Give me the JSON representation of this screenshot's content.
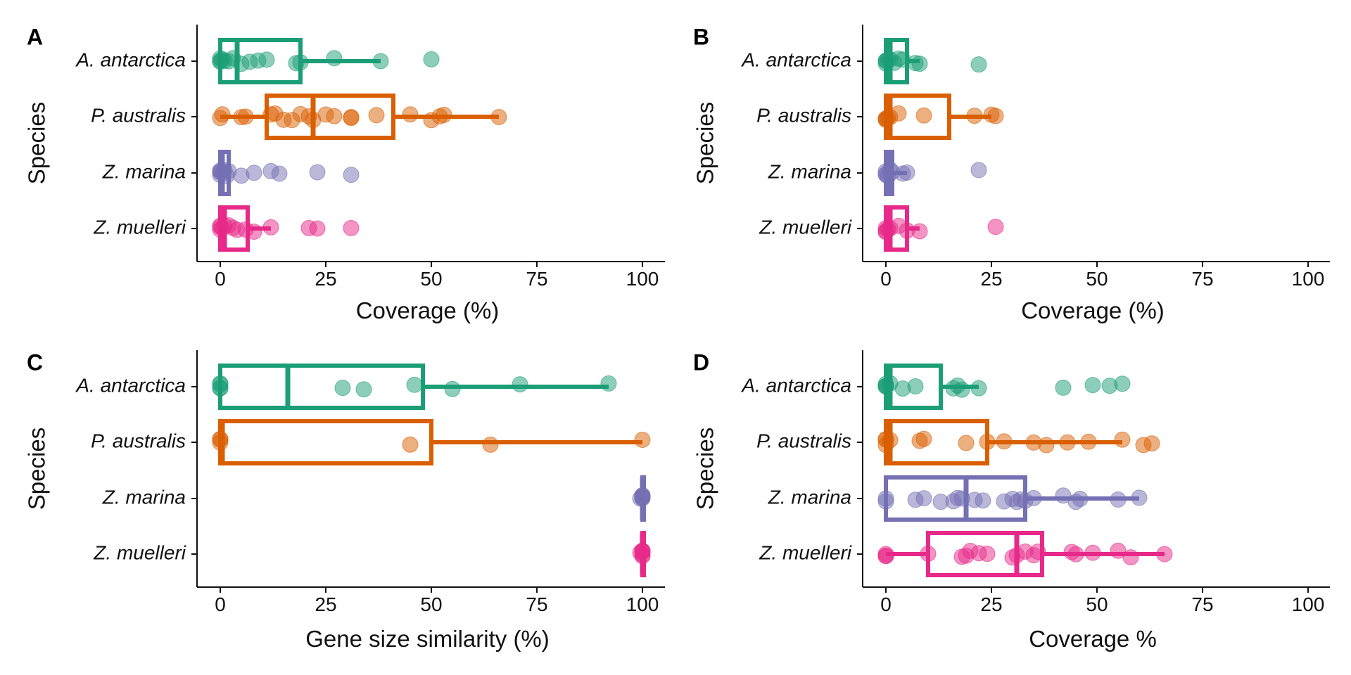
{
  "colors": {
    "A. antarctica": "#1b9e77",
    "P. australis": "#d95f02",
    "Z. marina": "#7570b3",
    "Z. muelleri": "#e7298a"
  },
  "chart_data": [
    {
      "panel": "A",
      "type": "boxplot",
      "xlabel": "Coverage (%)",
      "ylabel": "Species",
      "xlim": [
        0,
        100
      ],
      "xticks": [
        "0",
        "25",
        "50",
        "75",
        "100"
      ],
      "categories": [
        "A. antarctica",
        "P. australis",
        "Z. marina",
        "Z. muelleri"
      ],
      "series": [
        {
          "name": "A. antarctica",
          "box": {
            "q1": 0,
            "median": 4,
            "q3": 19,
            "whisker_low": 0,
            "whisker_high": 38
          },
          "points": [
            0,
            0,
            0,
            0.5,
            1,
            2,
            3,
            5,
            7,
            9,
            11,
            18,
            19,
            27,
            38,
            50
          ]
        },
        {
          "name": "P. australis",
          "box": {
            "q1": 11,
            "median": 22,
            "q3": 41,
            "whisker_low": 0,
            "whisker_high": 66
          },
          "points": [
            0,
            0.5,
            5,
            6,
            12,
            13,
            15,
            17,
            19,
            21,
            22,
            25,
            27,
            31,
            31,
            37,
            45,
            50,
            52,
            53,
            66
          ]
        },
        {
          "name": "Z. marina",
          "box": {
            "q1": 0,
            "median": 0.5,
            "q3": 2,
            "whisker_low": 0,
            "whisker_high": 2
          },
          "points": [
            0,
            0,
            0,
            0,
            0.5,
            1,
            1.5,
            2,
            5,
            8,
            12,
            14,
            23,
            31
          ]
        },
        {
          "name": "Z. muelleri",
          "box": {
            "q1": 0,
            "median": 1,
            "q3": 6.5,
            "whisker_low": 0,
            "whisker_high": 12
          },
          "points": [
            0,
            0,
            0,
            0.5,
            1,
            2,
            3,
            4,
            6,
            8,
            12,
            21,
            23,
            31
          ]
        }
      ]
    },
    {
      "panel": "B",
      "type": "boxplot",
      "xlabel": "Coverage (%)",
      "ylabel": "Species",
      "xlim": [
        0,
        100
      ],
      "xticks": [
        "0",
        "25",
        "50",
        "75",
        "100"
      ],
      "categories": [
        "A. antarctica",
        "P. australis",
        "Z. marina",
        "Z. muelleri"
      ],
      "series": [
        {
          "name": "A. antarctica",
          "box": {
            "q1": 0,
            "median": 1,
            "q3": 5,
            "whisker_low": 0,
            "whisker_high": 8
          },
          "points": [
            0,
            0,
            0,
            0.5,
            1,
            2,
            3,
            4,
            7,
            8,
            22
          ]
        },
        {
          "name": "P. australis",
          "box": {
            "q1": 0,
            "median": 1,
            "q3": 15,
            "whisker_low": 0,
            "whisker_high": 25
          },
          "points": [
            0,
            0,
            0,
            0.5,
            1,
            3,
            9,
            21,
            25,
            26
          ]
        },
        {
          "name": "Z. marina",
          "box": {
            "q1": 0,
            "median": 0.5,
            "q3": 1.5,
            "whisker_low": 0,
            "whisker_high": 5
          },
          "points": [
            0,
            0,
            0,
            0.5,
            1,
            1.5,
            4,
            5,
            22
          ]
        },
        {
          "name": "Z. muelleri",
          "box": {
            "q1": 0,
            "median": 1,
            "q3": 5,
            "whisker_low": 0,
            "whisker_high": 8
          },
          "points": [
            0,
            0,
            0,
            0.5,
            1,
            3,
            5,
            8,
            26
          ]
        }
      ]
    },
    {
      "panel": "C",
      "type": "boxplot",
      "xlabel": "Gene size similarity (%)",
      "ylabel": "Species",
      "xlim": [
        0,
        100
      ],
      "xticks": [
        "0",
        "25",
        "50",
        "75",
        "100"
      ],
      "categories": [
        "A. antarctica",
        "P. australis",
        "Z. marina",
        "Z. muelleri"
      ],
      "series": [
        {
          "name": "A. antarctica",
          "box": {
            "q1": 0,
            "median": 16,
            "q3": 48,
            "whisker_low": 0,
            "whisker_high": 92
          },
          "points": [
            0,
            0,
            0,
            0,
            29,
            34,
            46,
            55,
            71,
            92
          ]
        },
        {
          "name": "P. australis",
          "box": {
            "q1": 0,
            "median": 0.5,
            "q3": 50,
            "whisker_low": 0,
            "whisker_high": 100
          },
          "points": [
            0,
            0,
            0,
            45,
            64,
            100
          ]
        },
        {
          "name": "Z. marina",
          "box": {
            "q1": 100,
            "median": 100,
            "q3": 100,
            "whisker_low": 100,
            "whisker_high": 100
          },
          "points": [
            99.5,
            100,
            100,
            100,
            100,
            100,
            100
          ]
        },
        {
          "name": "Z. muelleri",
          "box": {
            "q1": 100,
            "median": 100,
            "q3": 100,
            "whisker_low": 100,
            "whisker_high": 100
          },
          "points": [
            99.5,
            100,
            100,
            100,
            100,
            100,
            100
          ]
        }
      ]
    },
    {
      "panel": "D",
      "type": "boxplot",
      "xlabel": "Coverage %",
      "ylabel": "Species",
      "xlim": [
        0,
        100
      ],
      "xticks": [
        "0",
        "25",
        "50",
        "75",
        "100"
      ],
      "categories": [
        "A. antarctica",
        "P. australis",
        "Z. marina",
        "Z. muelleri"
      ],
      "series": [
        {
          "name": "A. antarctica",
          "box": {
            "q1": 0,
            "median": 1,
            "q3": 13,
            "whisker_low": 0,
            "whisker_high": 22
          },
          "points": [
            0,
            0,
            0,
            0,
            1,
            4,
            7,
            16,
            17,
            18,
            22,
            42,
            49,
            53,
            56
          ]
        },
        {
          "name": "P. australis",
          "box": {
            "q1": 0,
            "median": 1,
            "q3": 24,
            "whisker_low": 0,
            "whisker_high": 56
          },
          "points": [
            0,
            0,
            0,
            1,
            8,
            9,
            19,
            24,
            28,
            35,
            38,
            43,
            48,
            56,
            61,
            63
          ]
        },
        {
          "name": "Z. marina",
          "box": {
            "q1": 0,
            "median": 19,
            "q3": 33,
            "whisker_low": 0,
            "whisker_high": 60
          },
          "points": [
            0,
            0,
            7,
            9,
            13,
            16,
            17,
            18,
            21,
            23,
            28,
            30,
            31,
            32,
            33,
            35,
            42,
            45,
            46,
            55,
            60
          ]
        },
        {
          "name": "Z. muelleri",
          "box": {
            "q1": 10,
            "median": 31,
            "q3": 37,
            "whisker_low": 0,
            "whisker_high": 66
          },
          "points": [
            0,
            0,
            0,
            10,
            18,
            19,
            20,
            22,
            24,
            30,
            31,
            33,
            35,
            36,
            44,
            45,
            49,
            55,
            58,
            66
          ]
        }
      ]
    }
  ]
}
